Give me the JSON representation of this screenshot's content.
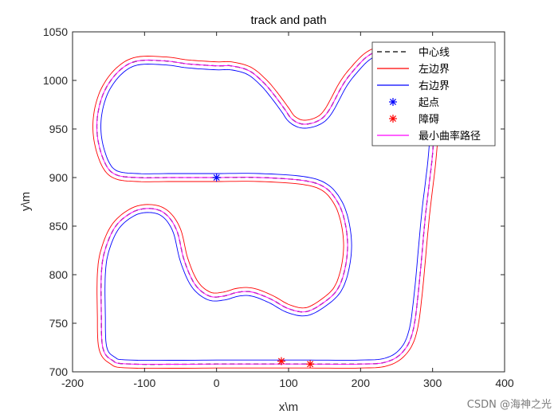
{
  "chart_data": {
    "type": "line",
    "title": "track and path",
    "xlabel": "x\\m",
    "ylabel": "y\\m",
    "xlim": [
      -200,
      400
    ],
    "ylim": [
      700,
      1050
    ],
    "xticks": [
      -200,
      -100,
      0,
      100,
      200,
      300,
      400
    ],
    "yticks": [
      700,
      750,
      800,
      850,
      900,
      950,
      1000,
      1050
    ],
    "grid": false,
    "legend_position": "top-right",
    "centerline_points": [
      [
        0,
        900
      ],
      [
        60,
        900
      ],
      [
        120,
        897
      ],
      [
        150,
        890
      ],
      [
        168,
        875
      ],
      [
        178,
        855
      ],
      [
        182,
        830
      ],
      [
        178,
        805
      ],
      [
        168,
        785
      ],
      [
        150,
        772
      ],
      [
        125,
        762
      ],
      [
        100,
        765
      ],
      [
        75,
        775
      ],
      [
        50,
        782
      ],
      [
        30,
        782
      ],
      [
        10,
        778
      ],
      [
        -10,
        778
      ],
      [
        -30,
        790
      ],
      [
        -45,
        815
      ],
      [
        -55,
        845
      ],
      [
        -70,
        862
      ],
      [
        -90,
        868
      ],
      [
        -115,
        865
      ],
      [
        -140,
        850
      ],
      [
        -155,
        825
      ],
      [
        -160,
        800
      ],
      [
        -160,
        760
      ],
      [
        -158,
        725
      ],
      [
        -145,
        712
      ],
      [
        -120,
        708
      ],
      [
        0,
        708
      ],
      [
        90,
        708
      ],
      [
        130,
        708
      ],
      [
        200,
        708
      ],
      [
        235,
        710
      ],
      [
        258,
        720
      ],
      [
        272,
        740
      ],
      [
        280,
        780
      ],
      [
        290,
        860
      ],
      [
        300,
        925
      ],
      [
        305,
        990
      ],
      [
        300,
        1015
      ],
      [
        280,
        1030
      ],
      [
        230,
        1030
      ],
      [
        210,
        1025
      ],
      [
        190,
        1010
      ],
      [
        175,
        995
      ],
      [
        155,
        968
      ],
      [
        140,
        958
      ],
      [
        120,
        955
      ],
      [
        105,
        960
      ],
      [
        95,
        970
      ],
      [
        80,
        985
      ],
      [
        65,
        998
      ],
      [
        45,
        1010
      ],
      [
        20,
        1015
      ],
      [
        0,
        1015
      ],
      [
        -40,
        1017
      ],
      [
        -70,
        1020
      ],
      [
        -110,
        1020
      ],
      [
        -135,
        1010
      ],
      [
        -155,
        990
      ],
      [
        -165,
        965
      ],
      [
        -165,
        940
      ],
      [
        -155,
        915
      ],
      [
        -140,
        903
      ],
      [
        -110,
        900
      ],
      [
        -60,
        900
      ],
      [
        0,
        900
      ]
    ],
    "series": [
      {
        "name": "中心线",
        "style": "dashed",
        "color": "#000000",
        "offset": 0
      },
      {
        "name": "左边界",
        "style": "solid",
        "color": "#ff0000",
        "offset": 5
      },
      {
        "name": "右边界",
        "style": "solid",
        "color": "#0000ff",
        "offset": -5
      },
      {
        "name": "最小曲率路径",
        "style": "solid",
        "color": "#ff00ff",
        "offset": 0
      }
    ],
    "markers": [
      {
        "name": "起点",
        "symbol": "*",
        "color": "#0000ff",
        "points": [
          [
            0,
            900
          ]
        ]
      },
      {
        "name": "障碍",
        "symbol": "*",
        "color": "#ff0000",
        "points": [
          [
            90,
            711
          ],
          [
            130,
            708
          ]
        ]
      }
    ]
  },
  "watermark": "CSDN @海神之光"
}
